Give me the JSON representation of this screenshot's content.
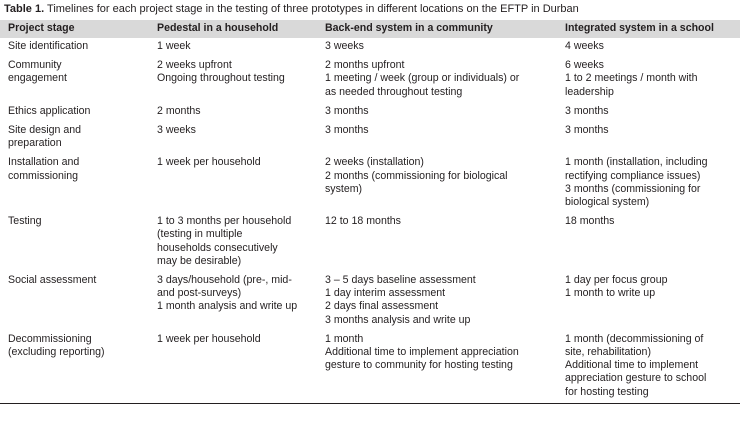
{
  "caption": {
    "label": "Table 1.",
    "text": "Timelines for each project stage in the testing of three prototypes in different locations on the EFTP in Durban"
  },
  "table": {
    "headers": [
      "Project stage",
      "Pedestal in a household",
      "Back-end system in a community",
      "Integrated system in a school"
    ],
    "rows": [
      [
        "Site identification",
        "1 week",
        "3 weeks",
        "4 weeks"
      ],
      [
        "Community\nengagement",
        "2 weeks upfront\nOngoing throughout testing",
        "2 months upfront\n1 meeting / week (group or individuals) or\nas needed throughout testing",
        "6 weeks\n1 to 2 meetings / month with\nleadership"
      ],
      [
        "Ethics application",
        "2 months",
        "3 months",
        "3 months"
      ],
      [
        "Site design and\npreparation",
        "3 weeks",
        "3 months",
        "3 months"
      ],
      [
        "Installation and\ncommissioning",
        "1 week per household",
        "2 weeks (installation)\n2 months (commissioning for biological\nsystem)",
        "1 month (installation, including\nrectifying compliance issues)\n3 months (commissioning for\nbiological system)"
      ],
      [
        "Testing",
        "1 to 3 months per household\n(testing in multiple\nhouseholds consecutively\nmay be desirable)",
        "12 to 18 months",
        "18 months"
      ],
      [
        "Social assessment",
        "3 days/household (pre-, mid-\nand post-surveys)\n1 month analysis and write up",
        "3 – 5 days baseline assessment\n1 day interim assessment\n2 days final assessment\n3 months analysis and write up",
        "1 day per focus group\n1 month to write up"
      ],
      [
        "Decommissioning\n(excluding reporting)",
        "1 week per household",
        "1 month\nAdditional time to implement appreciation\ngesture to community for hosting testing",
        "1 month (decommissioning of\nsite, rehabilitation)\nAdditional time to implement\nappreciation gesture to school\nfor hosting testing"
      ]
    ]
  }
}
